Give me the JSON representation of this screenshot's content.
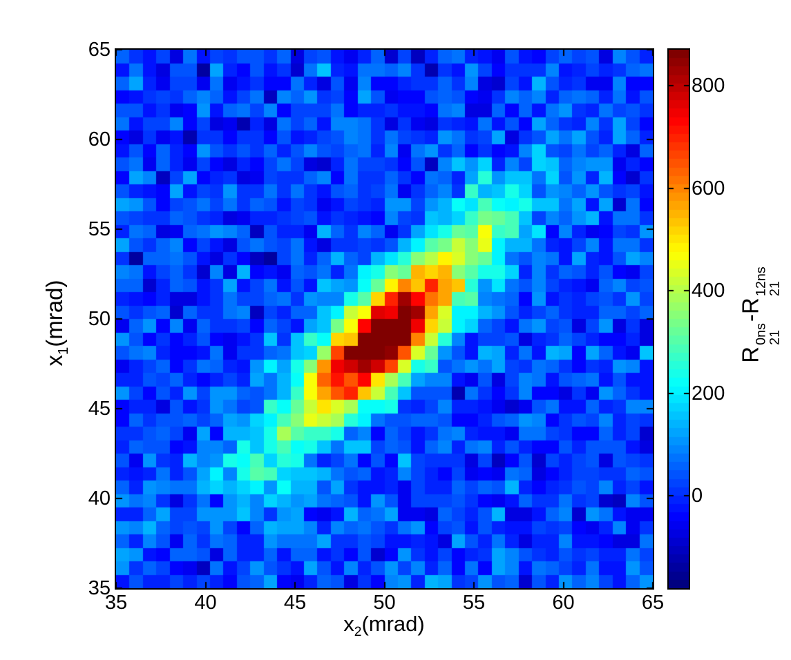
{
  "chart_data": {
    "type": "heatmap",
    "title": "",
    "xlabel": "x_2(mrad)",
    "ylabel": "x_1(mrad)",
    "colorbar_label": "R_21^0ns - R_21^12ns",
    "colormap": "jet",
    "colormap_levels": 64,
    "x_range": [
      35,
      65
    ],
    "y_range": [
      35,
      65
    ],
    "bins": [
      40,
      40
    ],
    "x_ticks": [
      35,
      40,
      45,
      50,
      55,
      60,
      65
    ],
    "y_ticks": [
      35,
      40,
      45,
      50,
      55,
      60,
      65
    ],
    "colorbar_ticks": [
      0,
      200,
      400,
      600,
      800
    ],
    "caxis": [
      -180,
      870
    ],
    "peak_value_approx": 870,
    "peak_location_approx": [
      50.5,
      49.5
    ],
    "background_level_approx": 0,
    "signal_model": {
      "background": {
        "mean": 15,
        "std": 55,
        "seed": 7
      },
      "gaussians": [
        {
          "amp": 780,
          "cx": 49.8,
          "cy": 48.8,
          "sigma_major": 3.6,
          "sigma_minor": 1.35,
          "angle_deg": 45
        },
        {
          "amp": 220,
          "cx": 50.3,
          "cy": 49.3,
          "sigma_major": 7.5,
          "sigma_minor": 2.3,
          "angle_deg": 45
        },
        {
          "amp": 170,
          "cx": 56.0,
          "cy": 55.5,
          "sigma_major": 2.8,
          "sigma_minor": 1.3,
          "angle_deg": 45
        },
        {
          "amp": 130,
          "cx": 43.2,
          "cy": 41.8,
          "sigma_major": 2.2,
          "sigma_minor": 1.2,
          "angle_deg": 45
        }
      ]
    },
    "labels": {
      "xlabel": {
        "base": "x",
        "sub": "2",
        "unit": "(mrad)"
      },
      "ylabel": {
        "base": "x",
        "sub": "1",
        "unit": "(mrad)"
      },
      "colorbar": {
        "r1": "R",
        "r1sup": "0ns",
        "r1sub": "21",
        "minus": "-",
        "r2": "R",
        "r2sup": "12ns",
        "r2sub": "21"
      }
    }
  }
}
